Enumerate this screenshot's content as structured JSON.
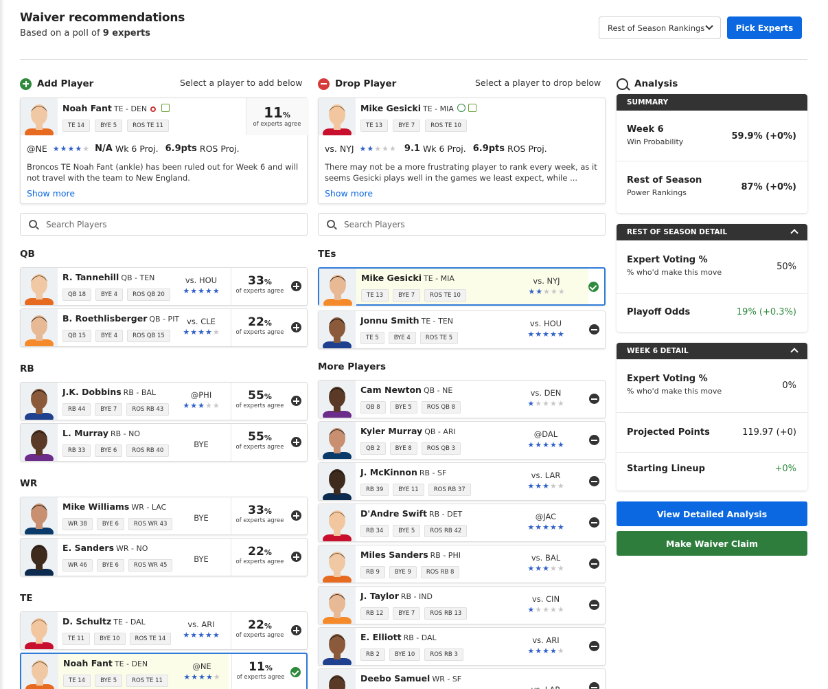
{
  "header": {
    "title": "Waiver recommendations",
    "subtitle_prefix": "Based on a poll of",
    "subtitle_bold": "9 experts",
    "select_value": "Rest of Season Rankings",
    "pick_experts": "Pick Experts"
  },
  "add": {
    "heading": "Add Player",
    "hint": "Select a player to add below",
    "card": {
      "name": "Noah Fant",
      "pos": "TE - DEN",
      "tags": [
        "TE 14",
        "BYE 5",
        "ROS TE 11"
      ],
      "pct": "11",
      "pct_sign": "%",
      "agree": "of experts agree",
      "opp": "@NE",
      "stars": 4,
      "proj1": "N/A",
      "proj1_l": "Wk 6 Proj.",
      "proj2": "6.9pts",
      "proj2_l": "ROS Proj.",
      "note": "Broncos TE Noah Fant (ankle) has been ruled out for Week 6 and will not travel with the team to New England.",
      "more": "Show more"
    },
    "search": "Search Players",
    "groups": [
      {
        "label": "QB",
        "rows": [
          {
            "name": "R. Tannehill",
            "pos": "QB - TEN",
            "tags": [
              "QB 18",
              "BYE 4",
              "ROS QB 20"
            ],
            "opp": "vs. HOU",
            "stars": 5,
            "pct": "33",
            "agree": "of experts agree"
          },
          {
            "name": "B. Roethlisberger",
            "pos": "QB - PIT",
            "tags": [
              "QB 15",
              "BYE 4",
              "ROS QB 15"
            ],
            "opp": "vs. CLE",
            "stars": 4,
            "pct": "22",
            "agree": "of experts agree"
          }
        ]
      },
      {
        "label": "RB",
        "rows": [
          {
            "name": "J.K. Dobbins",
            "pos": "RB - BAL",
            "tags": [
              "RB 44",
              "BYE 7",
              "ROS RB 43"
            ],
            "opp": "@PHI",
            "stars": 3,
            "pct": "55",
            "agree": "of experts agree"
          },
          {
            "name": "L. Murray",
            "pos": "RB - NO",
            "tags": [
              "RB 33",
              "BYE 6",
              "ROS RB 40"
            ],
            "opp": "BYE",
            "stars": 0,
            "pct": "55",
            "agree": "of experts agree"
          }
        ]
      },
      {
        "label": "WR",
        "rows": [
          {
            "name": "Mike Williams",
            "pos": "WR - LAC",
            "tags": [
              "WR 38",
              "BYE 6",
              "ROS WR 43"
            ],
            "opp": "BYE",
            "stars": 0,
            "pct": "33",
            "agree": "of experts agree"
          },
          {
            "name": "E. Sanders",
            "pos": "WR - NO",
            "tags": [
              "WR 46",
              "BYE 6",
              "ROS WR 45"
            ],
            "opp": "BYE",
            "stars": 0,
            "pct": "22",
            "agree": "of experts agree"
          }
        ]
      },
      {
        "label": "TE",
        "rows": [
          {
            "name": "D. Schultz",
            "pos": "TE - DAL",
            "tags": [
              "TE 11",
              "BYE 10",
              "ROS TE 14"
            ],
            "opp": "vs. ARI",
            "stars": 5,
            "pct": "22",
            "agree": "of experts agree"
          },
          {
            "name": "Noah Fant",
            "pos": "TE - DEN",
            "tags": [
              "TE 14",
              "BYE 5",
              "ROS TE 11"
            ],
            "opp": "@NE",
            "stars": 4,
            "pct": "11",
            "agree": "of experts agree",
            "selected": true
          }
        ]
      }
    ]
  },
  "drop": {
    "heading": "Drop Player",
    "hint": "Select a player to drop below",
    "card": {
      "name": "Mike Gesicki",
      "pos": "TE - MIA",
      "tags": [
        "TE 13",
        "BYE 7",
        "ROS TE 10"
      ],
      "opp": "vs. NYJ",
      "stars": 2,
      "proj1": "9.1",
      "proj1_l": "Wk 6 Proj.",
      "proj2": "6.9pts",
      "proj2_l": "ROS Proj.",
      "note": "There may not be a more frustrating player to rank every week, as it seems Gesicki plays well in the games we least expect, while ...",
      "more": "Show more"
    },
    "search": "Search Players",
    "tes_label": "TEs",
    "tes": [
      {
        "name": "Mike Gesicki",
        "pos": "TE - MIA",
        "tags": [
          "TE 13",
          "BYE 7",
          "ROS TE 10"
        ],
        "opp": "vs. NYJ",
        "stars": 2,
        "selected": true
      },
      {
        "name": "Jonnu Smith",
        "pos": "TE - TEN",
        "tags": [
          "TE 5",
          "BYE 4",
          "ROS TE 5"
        ],
        "opp": "vs. HOU",
        "stars": 5
      }
    ],
    "more_label": "More Players",
    "more": [
      {
        "name": "Cam Newton",
        "pos": "QB - NE",
        "tags": [
          "QB 8",
          "BYE 5",
          "ROS QB 8"
        ],
        "opp": "vs. DEN",
        "stars": 1
      },
      {
        "name": "Kyler Murray",
        "pos": "QB - ARI",
        "tags": [
          "QB 2",
          "BYE 8",
          "ROS QB 3"
        ],
        "opp": "@DAL",
        "stars": 5
      },
      {
        "name": "J. McKinnon",
        "pos": "RB - SF",
        "tags": [
          "RB 39",
          "BYE 11",
          "ROS RB 37"
        ],
        "opp": "vs. LAR",
        "stars": 3
      },
      {
        "name": "D'Andre Swift",
        "pos": "RB - DET",
        "tags": [
          "RB 34",
          "BYE 5",
          "ROS RB 42"
        ],
        "opp": "@JAC",
        "stars": 5
      },
      {
        "name": "Miles Sanders",
        "pos": "RB - PHI",
        "tags": [
          "RB 9",
          "BYE 9",
          "ROS RB 8"
        ],
        "opp": "vs. BAL",
        "stars": 3
      },
      {
        "name": "J. Taylor",
        "pos": "RB - IND",
        "tags": [
          "RB 12",
          "BYE 7",
          "ROS RB 13"
        ],
        "opp": "vs. CIN",
        "stars": 1
      },
      {
        "name": "E. Elliott",
        "pos": "RB - DAL",
        "tags": [
          "RB 2",
          "BYE 10",
          "ROS RB 3"
        ],
        "opp": "vs. ARI",
        "stars": 4
      },
      {
        "name": "Deebo Samuel",
        "pos": "WR - SF",
        "tags": [],
        "opp": "vs. LAR",
        "stars": 0
      }
    ]
  },
  "analysis": {
    "heading": "Analysis",
    "summary": {
      "title": "SUMMARY",
      "rows": [
        {
          "l1": "Week 6",
          "l2": "Win Probability",
          "v": "59.9% (+0%)"
        },
        {
          "l1": "Rest of Season",
          "l2": "Power Rankings",
          "v": "87% (+0%)"
        }
      ]
    },
    "ros": {
      "title": "REST OF SEASON DETAIL",
      "rows": [
        {
          "l1": "Expert Voting %",
          "l2": "% who'd make this move",
          "v": "50%"
        },
        {
          "l1": "Playoff Odds",
          "l2": "",
          "v": "19% (+0.3%)"
        }
      ]
    },
    "wk": {
      "title": "WEEK 6 DETAIL",
      "rows": [
        {
          "l1": "Expert Voting %",
          "l2": "% who'd make this move",
          "v": "0%"
        },
        {
          "l1": "Projected Points",
          "l2": "",
          "v": "119.97 (+0)"
        },
        {
          "l1": "Starting Lineup",
          "l2": "",
          "v": "+0%"
        }
      ]
    },
    "view_btn": "View Detailed Analysis",
    "claim_btn": "Make Waiver Claim"
  },
  "colors": {
    "accent": "#0b68e0",
    "green": "#2f8a3e",
    "star": "#2f5fc7"
  }
}
